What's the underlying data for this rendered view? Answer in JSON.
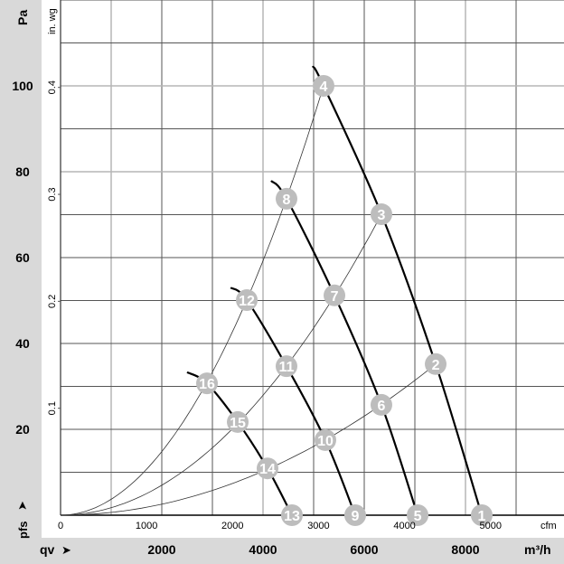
{
  "chart_data": {
    "type": "line",
    "y_unit_primary": "Pa",
    "y_unit_secondary": "in. wg",
    "y_axis_symbol": "pfs",
    "x_axis_symbol": "qv",
    "x_unit_primary": "m³/h",
    "x_unit_secondary": "cfm",
    "xlim": [
      0,
      10000
    ],
    "ylim": [
      0,
      120
    ],
    "grid": true,
    "y_ticks_pa": [
      20,
      40,
      60,
      80,
      100
    ],
    "y_ticks_inwg": [
      "0.1",
      "0.2",
      "0.3",
      "0.4"
    ],
    "x_ticks_m3h": [
      2000,
      4000,
      6000,
      8000
    ],
    "x_ticks_cfm": [
      "0",
      "1000",
      "2000",
      "3000",
      "4000",
      "5000"
    ],
    "colors": {
      "fan_curve": "#000000",
      "system_curve": "#333333",
      "marker": "#bdbdbd",
      "marker_text": "#ffffff",
      "side_band": "#d9d9d9"
    },
    "fan_curves": [
      {
        "start": [
          4980,
          104.6
        ],
        "points": [
          {
            "id": "4",
            "q": 5196,
            "p": 100
          },
          {
            "id": "3",
            "q": 6339,
            "p": 70.1
          },
          {
            "id": "2",
            "q": 7411,
            "p": 35.2
          },
          {
            "id": "1",
            "q": 8321,
            "p": 0
          }
        ]
      },
      {
        "start": [
          4160,
          77.9
        ],
        "points": [
          {
            "id": "8",
            "q": 4464,
            "p": 73.7
          },
          {
            "id": "7",
            "q": 5411,
            "p": 51.2
          },
          {
            "id": "6",
            "q": 6339,
            "p": 25.7
          },
          {
            "id": "5",
            "q": 7054,
            "p": 0
          }
        ]
      },
      {
        "start": [
          3360,
          53.0
        ],
        "points": [
          {
            "id": "12",
            "q": 3679,
            "p": 50.1
          },
          {
            "id": "11",
            "q": 4464,
            "p": 34.7
          },
          {
            "id": "10",
            "q": 5232,
            "p": 17.5
          },
          {
            "id": "9",
            "q": 5821,
            "p": 0
          }
        ]
      },
      {
        "start": [
          2500,
          33.3
        ],
        "points": [
          {
            "id": "16",
            "q": 2893,
            "p": 30.7
          },
          {
            "id": "15",
            "q": 3500,
            "p": 21.7
          },
          {
            "id": "14",
            "q": 4089,
            "p": 10.9
          },
          {
            "id": "13",
            "q": 4571,
            "p": 0
          }
        ]
      }
    ],
    "system_curves": [
      {
        "through": "4",
        "q": 5196,
        "p": 100
      },
      {
        "through": "3",
        "q": 6339,
        "p": 70.1
      },
      {
        "through": "2",
        "q": 7411,
        "p": 35.2
      }
    ]
  }
}
